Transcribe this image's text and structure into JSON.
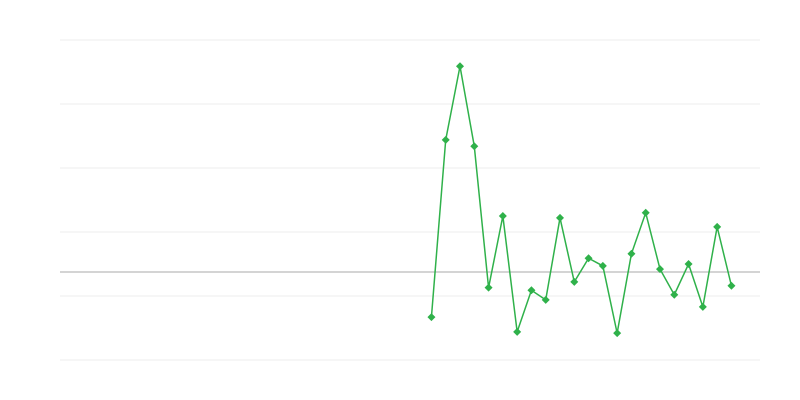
{
  "chart_data": {
    "type": "line",
    "values": [
      null,
      null,
      null,
      null,
      null,
      null,
      null,
      null,
      null,
      null,
      null,
      null,
      null,
      null,
      null,
      null,
      null,
      null,
      null,
      null,
      null,
      null,
      null,
      null,
      null,
      null,
      0.67,
      3.44,
      4.59,
      3.34,
      1.13,
      2.25,
      0.44,
      1.09,
      0.94,
      2.22,
      1.22,
      1.59,
      1.47,
      0.42,
      1.66,
      2.3,
      1.42,
      1.02,
      1.5,
      0.83,
      2.08,
      1.16,
      null,
      null
    ],
    "color": "#2fb14a",
    "ylim": [
      0,
      5
    ],
    "yticks": [
      0,
      1,
      2,
      3,
      4,
      5
    ],
    "grid": true,
    "reference_line": 1.375,
    "marker": "diamond"
  }
}
